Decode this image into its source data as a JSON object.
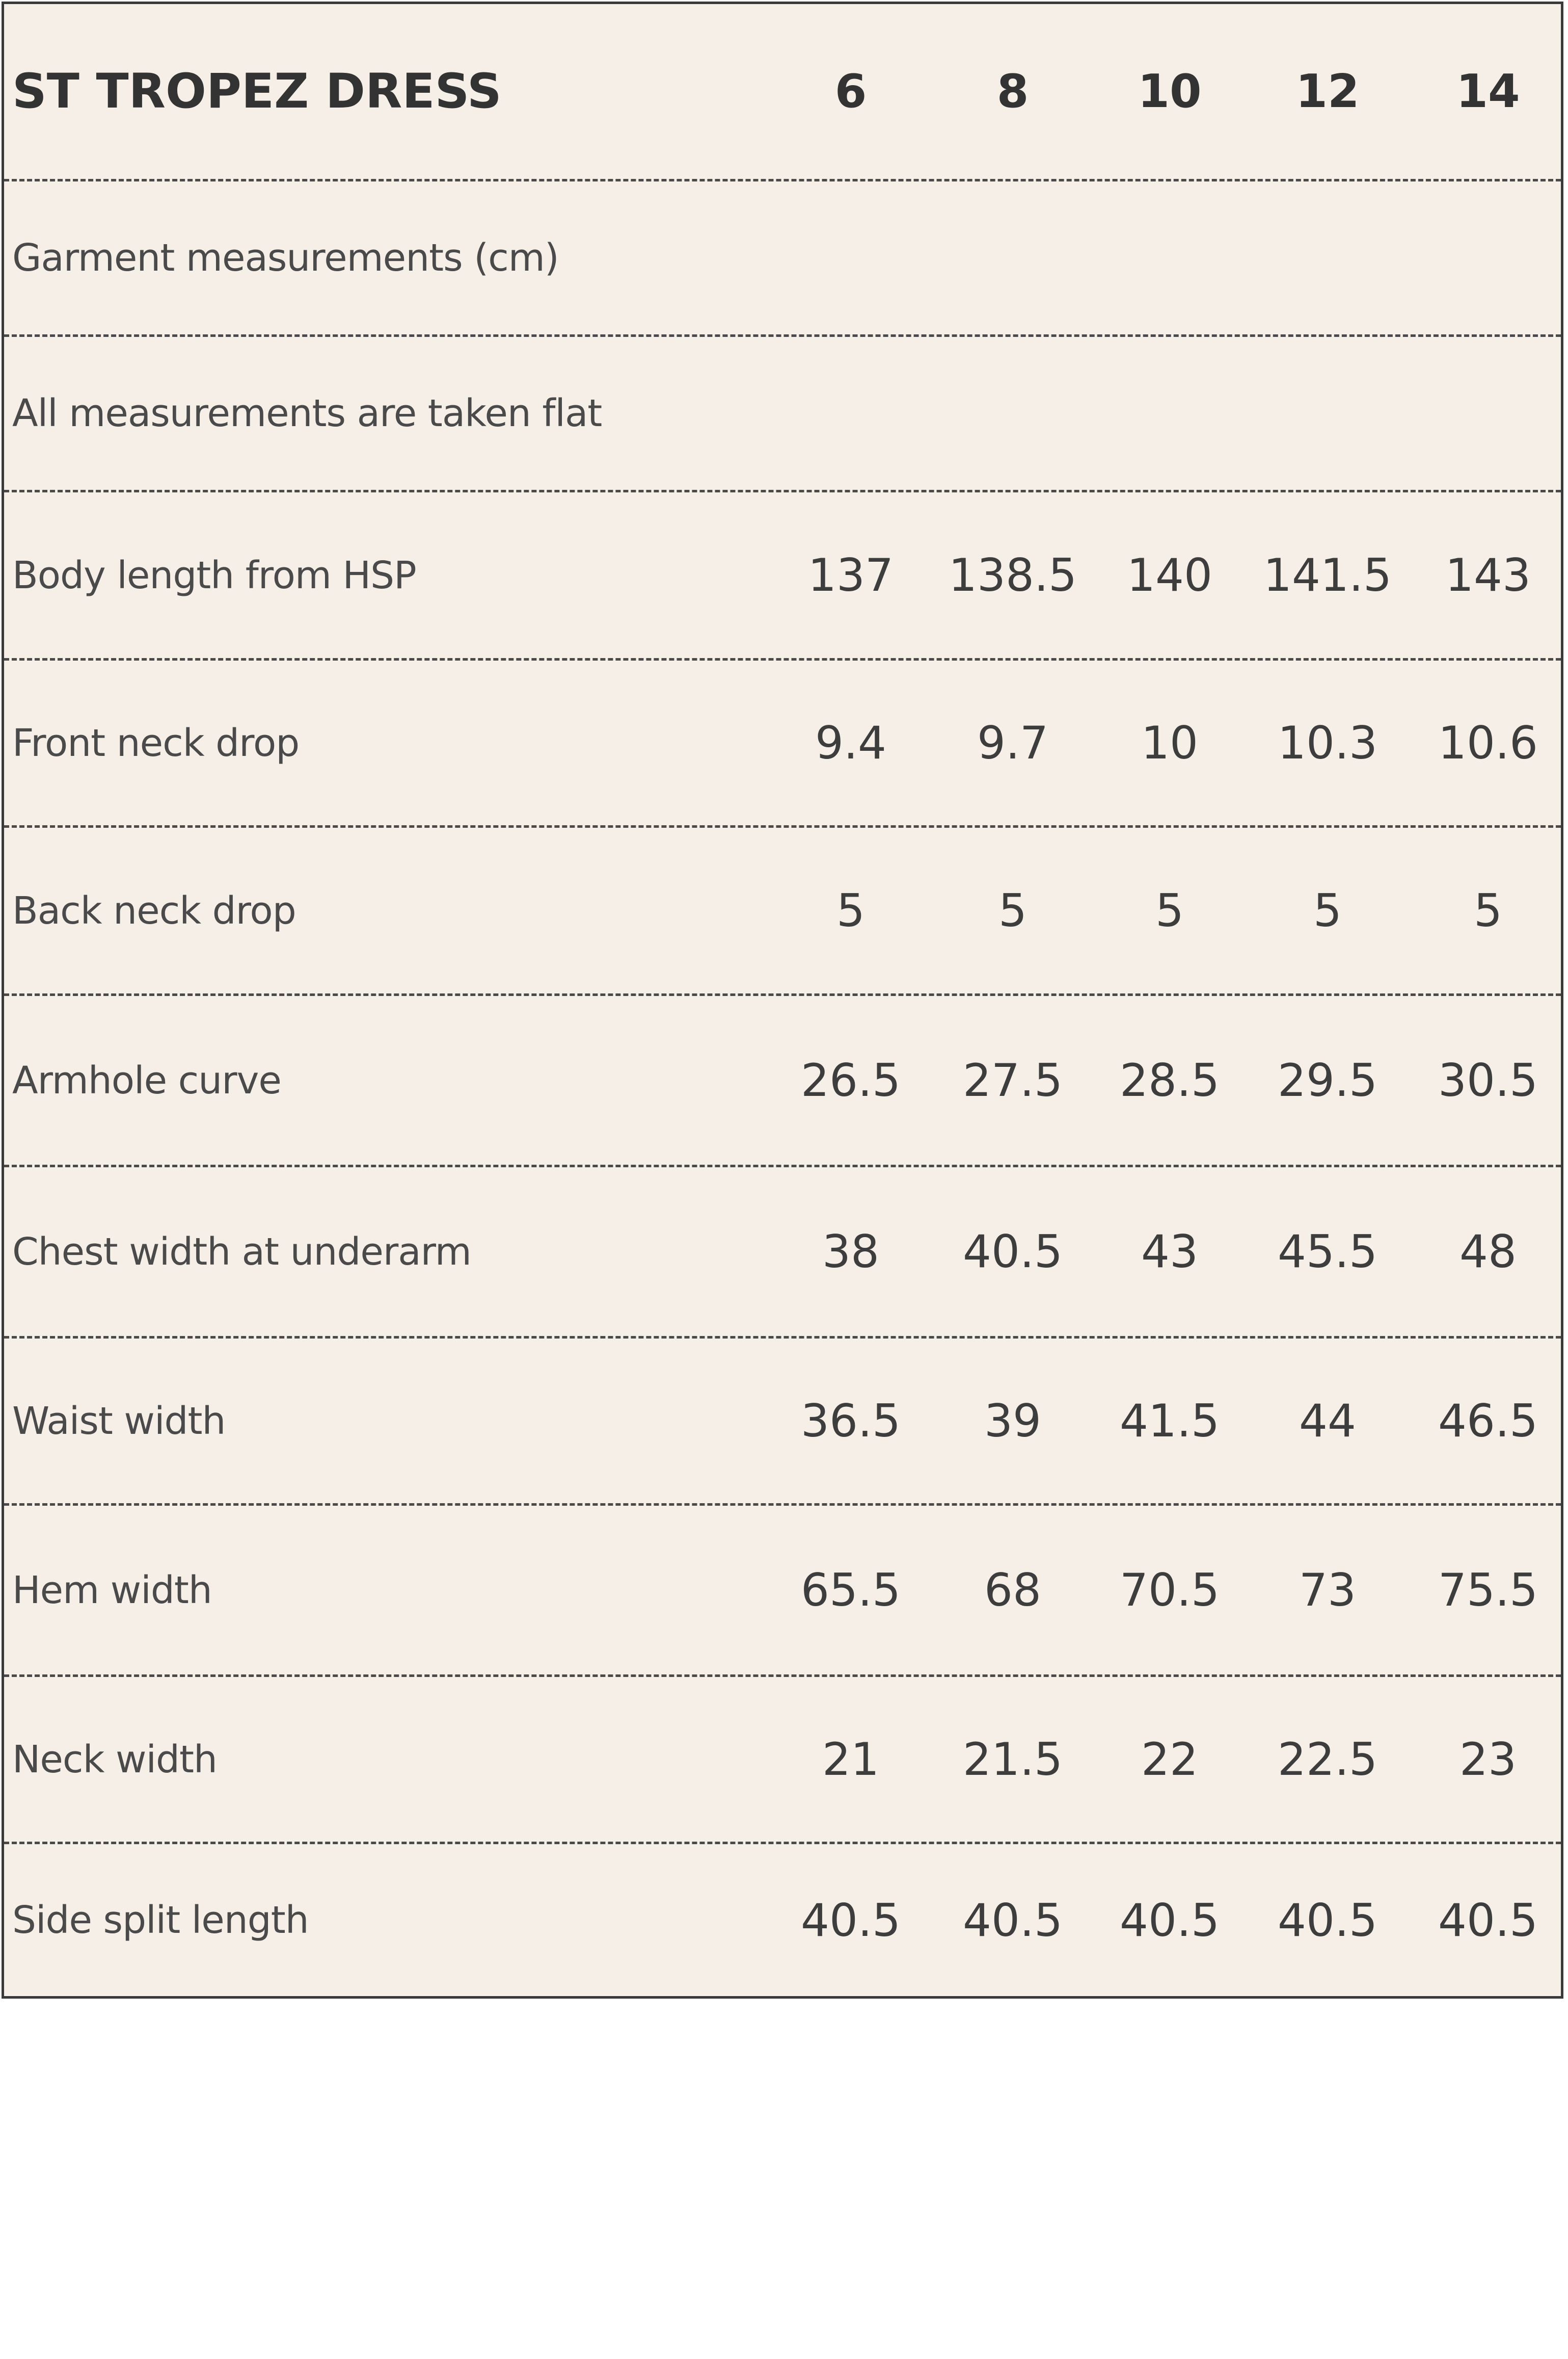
{
  "table": {
    "title": "ST TROPEZ DRESS",
    "sizes": [
      "6",
      "8",
      "10",
      "12",
      "14"
    ],
    "info_rows": [
      "Garment measurements (cm)",
      "All measurements are taken flat"
    ],
    "rows": [
      {
        "label": "Body length from HSP",
        "values": [
          "137",
          "138.5",
          "140",
          "141.5",
          "143"
        ]
      },
      {
        "label": "Front neck drop",
        "values": [
          "9.4",
          "9.7",
          "10",
          "10.3",
          "10.6"
        ]
      },
      {
        "label": "Back neck drop",
        "values": [
          "5",
          "5",
          "5",
          "5",
          "5"
        ]
      },
      {
        "label": "Armhole curve",
        "values": [
          "26.5",
          "27.5",
          "28.5",
          "29.5",
          "30.5"
        ]
      },
      {
        "label": "Chest width at underarm",
        "values": [
          "38",
          "40.5",
          "43",
          "45.5",
          "48"
        ]
      },
      {
        "label": "Waist width",
        "values": [
          "36.5",
          "39",
          "41.5",
          "44",
          "46.5"
        ]
      },
      {
        "label": "Hem width",
        "values": [
          "65.5",
          "68",
          "70.5",
          "73",
          "75.5"
        ]
      },
      {
        "label": "Neck width",
        "values": [
          "21",
          "21.5",
          "22",
          "22.5",
          "23"
        ]
      },
      {
        "label": "Side split length",
        "values": [
          "40.5",
          "40.5",
          "40.5",
          "40.5",
          "40.5"
        ]
      }
    ]
  }
}
